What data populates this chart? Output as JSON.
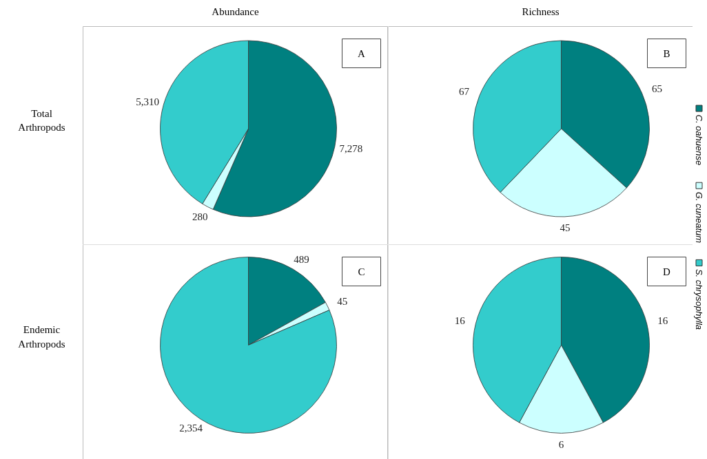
{
  "chart_data": [
    {
      "type": "pie",
      "title": "Abundance",
      "ylabel": "Total Arthropods",
      "annotations": [
        "A"
      ],
      "categories": [
        "C. oahuense",
        "G. cuneatum",
        "S. chrysophylla"
      ],
      "values": [
        7278,
        280,
        5310
      ],
      "colors": [
        "#008080",
        "#ccffff",
        "#33cccc"
      ],
      "data_labels": true,
      "value_labels": [
        "7,278",
        "280",
        "5,310"
      ],
      "legend": "right"
    },
    {
      "type": "pie",
      "title": "Richness",
      "annotations": [
        "B"
      ],
      "categories": [
        null,
        null,
        null
      ],
      "values": [
        65,
        45,
        67
      ],
      "colors": [
        "#008080",
        "#ccffff",
        "#33cccc"
      ],
      "data_labels": true
    },
    {
      "type": "pie",
      "ylabel": "Endemic Arthropods",
      "annotations": [
        "C"
      ],
      "categories": [
        null,
        null,
        null
      ],
      "values": [
        489,
        45,
        2354
      ],
      "colors": [
        "#008080",
        "#ccffff",
        "#33cccc"
      ],
      "data_labels": true,
      "value_labels": [
        "489",
        "45",
        "2,354"
      ]
    },
    {
      "type": "pie",
      "annotations": [
        "D"
      ],
      "categories": [
        null,
        null,
        null
      ],
      "values": [
        16,
        6,
        16
      ],
      "colors": [
        "#008080",
        "#ccffff",
        "#33cccc"
      ],
      "data_labels": true
    }
  ]
}
